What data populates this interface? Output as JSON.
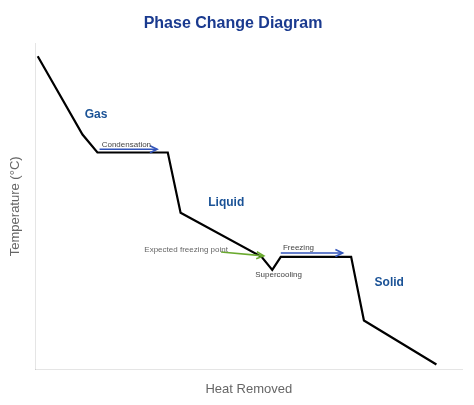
{
  "chart_data": {
    "type": "line",
    "title": "Phase Change Diagram",
    "title_color": "#1a3a8f",
    "xlabel": "Heat Removed",
    "ylabel": "Temperature (°C)",
    "x": [
      0.05,
      1.1,
      1.45,
      3.1,
      3.4,
      5.3,
      5.55,
      5.75,
      7.4,
      7.7,
      9.4
    ],
    "values": [
      9.6,
      7.2,
      6.65,
      6.65,
      4.8,
      3.45,
      3.05,
      3.45,
      3.45,
      1.5,
      0.15
    ],
    "color": "#000000",
    "xlim": [
      0,
      10
    ],
    "ylim": [
      0,
      10
    ],
    "grid": false,
    "tick_labels": false,
    "phase_labels": [
      {
        "text": "Gas",
        "x": 1.15,
        "y": 7.8,
        "color": "#1a5296"
      },
      {
        "text": "Liquid",
        "x": 4.05,
        "y": 5.1,
        "color": "#1a5296"
      },
      {
        "text": "Solid",
        "x": 7.95,
        "y": 2.65,
        "color": "#1a5296"
      }
    ],
    "annotations": [
      {
        "text": "Condensation",
        "x": 1.55,
        "y": 6.9,
        "color": "#444444",
        "arrow": {
          "x1": 1.5,
          "y1": 6.75,
          "x2": 2.85,
          "y2": 6.75,
          "color": "#3355bb"
        }
      },
      {
        "text": "Freezing",
        "x": 5.8,
        "y": 3.72,
        "color": "#444444",
        "arrow": {
          "x1": 5.75,
          "y1": 3.57,
          "x2": 7.2,
          "y2": 3.57,
          "color": "#3355bb"
        }
      },
      {
        "text": "Supercooling",
        "x": 5.15,
        "y": 2.9,
        "color": "#444444"
      },
      {
        "text": "Expected freezing point",
        "x": 2.55,
        "y": 3.68,
        "color": "#666666",
        "arrow": {
          "x1": 4.35,
          "y1": 3.6,
          "x2": 5.35,
          "y2": 3.48,
          "color": "#6aaa2f"
        }
      }
    ]
  }
}
